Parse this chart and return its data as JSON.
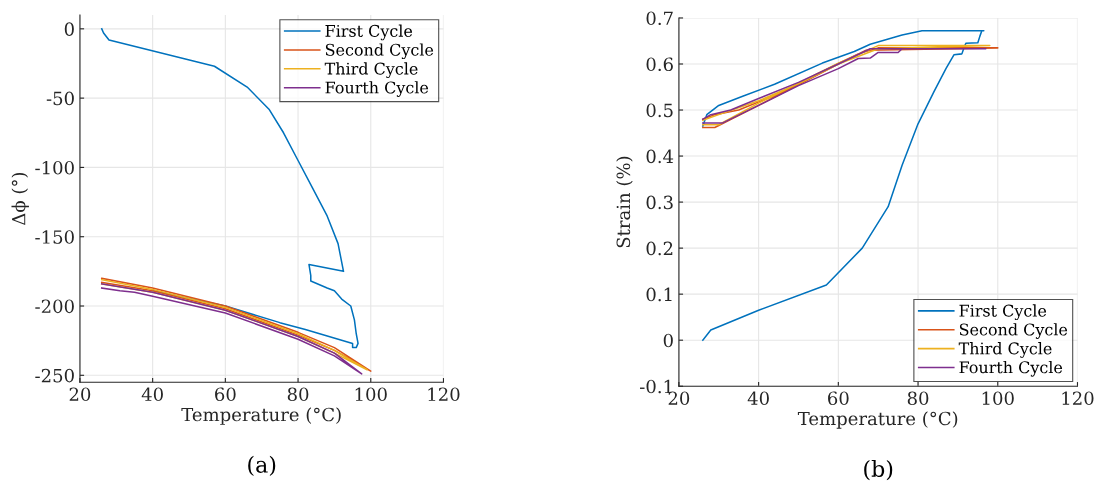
{
  "chart_data": [
    {
      "type": "line",
      "xlabel": "Temperature (°C)",
      "ylabel": "Δϕ (°)",
      "xlim": [
        20,
        120
      ],
      "xticks": [
        20,
        40,
        60,
        80,
        100,
        120
      ],
      "ylim": [
        -255,
        10
      ],
      "yticks": [
        -250,
        -200,
        -150,
        -100,
        -50,
        0
      ],
      "grid": true,
      "legend": "top right",
      "marker": "none",
      "line_style": "solid",
      "annotations": [
        "(a)"
      ],
      "series": [
        {
          "name": "First Cycle",
          "color": "#0072bd",
          "x": [
            26,
            26.5,
            28,
            57,
            66,
            72,
            76,
            80,
            84,
            88,
            91,
            92.5,
            83,
            83.5,
            83.5,
            88,
            90,
            92,
            94.5,
            95.5,
            96,
            96.5,
            96,
            95,
            95,
            82,
            75,
            60,
            40
          ],
          "values": [
            0,
            -3,
            -8,
            -27,
            -42,
            -58,
            -75,
            -95,
            -115,
            -135,
            -155,
            -175,
            -170,
            -178,
            -182,
            -187,
            -189,
            -195,
            -200,
            -210,
            -220,
            -227,
            -230,
            -230,
            -227,
            -217,
            -212,
            -200,
            -189
          ]
        },
        {
          "name": "Second Cycle",
          "color": "#d95319",
          "x": [
            26,
            40,
            60,
            80,
            90,
            100,
            90,
            80,
            60,
            40,
            26
          ],
          "values": [
            -180,
            -187,
            -200,
            -219,
            -230,
            -247,
            -232,
            -221,
            -202,
            -189,
            -183
          ]
        },
        {
          "name": "Third Cycle",
          "color": "#edb120",
          "x": [
            26,
            40,
            60,
            80,
            90,
            99,
            90,
            80,
            60,
            40,
            26
          ],
          "values": [
            -181,
            -188,
            -201,
            -220,
            -232,
            -246,
            -234,
            -222,
            -203,
            -190,
            -184
          ]
        },
        {
          "name": "Fourth Cycle",
          "color": "#7e2f8e",
          "x": [
            26,
            31,
            35,
            40,
            60,
            80,
            90,
            97.5,
            90,
            80,
            60,
            40,
            26
          ],
          "values": [
            -187,
            -189,
            -190,
            -193,
            -205,
            -224,
            -236,
            -249,
            -234,
            -222,
            -203,
            -190,
            -184
          ]
        }
      ]
    },
    {
      "type": "line",
      "xlabel": "Temperature (°C)",
      "ylabel": "Strain (%)",
      "xlim": [
        20,
        120
      ],
      "xticks": [
        20,
        40,
        60,
        80,
        100,
        120
      ],
      "ylim": [
        -0.1,
        0.7
      ],
      "yticks": [
        -0.1,
        0,
        0.1,
        0.2,
        0.3,
        0.4,
        0.5,
        0.6,
        0.7
      ],
      "grid": true,
      "legend": "bottom right",
      "marker": "none",
      "line_style": "solid",
      "annotations": [
        "(b)"
      ],
      "series": [
        {
          "name": "First Cycle",
          "color": "#0072bd",
          "x": [
            26,
            28,
            40,
            57,
            66,
            72.5,
            76,
            80,
            84,
            87,
            89,
            91,
            91.5,
            92,
            95,
            95.5,
            96,
            96.5,
            81,
            76,
            68,
            64,
            56,
            44,
            36,
            30,
            27,
            26
          ],
          "values": [
            0,
            0.022,
            0.065,
            0.12,
            0.2,
            0.29,
            0.38,
            0.47,
            0.54,
            0.59,
            0.62,
            0.622,
            0.635,
            0.645,
            0.646,
            0.66,
            0.672,
            0.672,
            0.672,
            0.663,
            0.643,
            0.627,
            0.602,
            0.556,
            0.53,
            0.51,
            0.49,
            0.465
          ]
        },
        {
          "name": "Second Cycle",
          "color": "#d95319",
          "x": [
            26,
            29,
            40,
            50,
            60,
            67,
            100,
            70,
            65,
            55,
            45,
            35,
            29,
            26
          ],
          "values": [
            0.462,
            0.462,
            0.51,
            0.555,
            0.6,
            0.63,
            0.635,
            0.635,
            0.622,
            0.58,
            0.535,
            0.5,
            0.49,
            0.48
          ]
        },
        {
          "name": "Third Cycle",
          "color": "#edb120",
          "x": [
            26,
            30,
            40,
            50,
            60,
            70,
            98,
            70,
            60,
            50,
            40,
            30,
            26
          ],
          "values": [
            0.468,
            0.468,
            0.515,
            0.558,
            0.602,
            0.64,
            0.64,
            0.633,
            0.6,
            0.557,
            0.52,
            0.49,
            0.478
          ]
        },
        {
          "name": "Fourth Cycle",
          "color": "#7e2f8e",
          "x": [
            26,
            31,
            40,
            50,
            60,
            65,
            68,
            70,
            75,
            76,
            97,
            68,
            60,
            50,
            40,
            33,
            28,
            26
          ],
          "values": [
            0.472,
            0.472,
            0.51,
            0.553,
            0.59,
            0.612,
            0.613,
            0.625,
            0.625,
            0.633,
            0.633,
            0.633,
            0.6,
            0.56,
            0.525,
            0.5,
            0.49,
            0.48
          ]
        }
      ]
    }
  ]
}
